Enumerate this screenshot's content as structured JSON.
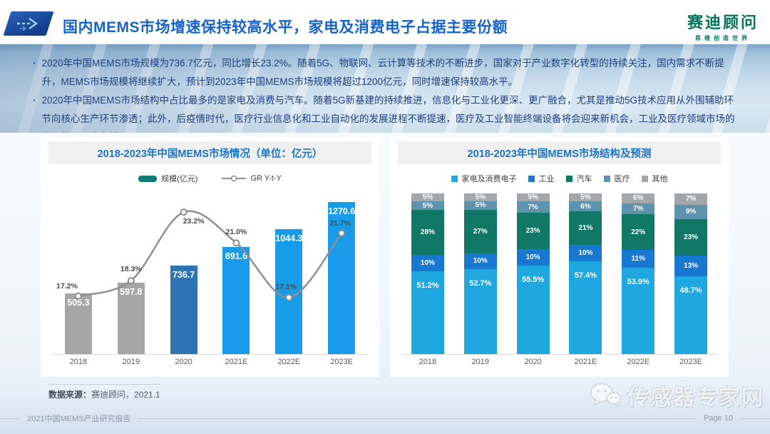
{
  "header": {
    "title": "国内MEMS市场增速保持较高水平，家电及消费电子占据主要份额",
    "arrow_icon": "double-arrow-icon",
    "logo": {
      "name": "赛迪顾问",
      "tagline": "思维创造世界"
    }
  },
  "summary": {
    "bullets": [
      "2020年中国MEMS市场规模为736.7亿元，同比增长23.2%。随着5G、物联网、云计算等技术的不断进步，国家对于产业数字化转型的持续关注，国内需求不断提升，MEMS市场规模将继续扩大，预计到2023年中国MEMS市场规模将超过1200亿元，同时增速保持较高水平。",
      "2020年中国MEMS市场结构中占比最多的是家电及消费与汽车。随着5G新基建的持续推进，信息化与工业化更深、更广融合，尤其是推动5G技术应用从外围辅助环节向核心生产环节渗透；此外，后疫情时代，医疗行业信息化和工业自动化的发展进程不断提速，医疗及工业智能终端设备将会迎来新机会，工业及医疗领域市场的空间将进一步释放。"
    ]
  },
  "chart_data": [
    {
      "type": "bar+line",
      "title": "2018-2023年中国MEMS市场情况（单位：亿元）",
      "categories": [
        "2018",
        "2019",
        "2020",
        "2021E",
        "2022E",
        "2023E"
      ],
      "series": [
        {
          "name": "规模(亿元)",
          "type": "bar",
          "values": [
            505.3,
            597.8,
            736.7,
            891.6,
            1044.3,
            1270.6
          ],
          "legend_color": "#0E7C74"
        },
        {
          "name": "GR Y-t-Y",
          "type": "line",
          "unit": "%",
          "values": [
            17.2,
            18.3,
            23.2,
            21.0,
            17.1,
            21.7
          ],
          "color": "#8F8F8F"
        }
      ],
      "bar_colors": [
        "#A6A6A6",
        "#A6A6A6",
        "#2E75B6",
        "#189BE9",
        "#189BE9",
        "#189BE9"
      ],
      "axis": {
        "bar_max": 1400,
        "growth_min": 13,
        "growth_max": 25
      },
      "legend_position": "top",
      "grid": false
    },
    {
      "type": "stacked-bar-100",
      "title": "2018-2023年中国MEMS市场结构及预测",
      "categories": [
        "2018",
        "2019",
        "2020",
        "2021E",
        "2022E",
        "2023E"
      ],
      "series": [
        {
          "name": "家电及消费电子",
          "color": "#1FA7E0",
          "values": [
            51.2,
            52.7,
            55.5,
            57.4,
            53.9,
            48.7
          ]
        },
        {
          "name": "工业",
          "color": "#1777D1",
          "values": [
            10,
            10,
            10,
            10,
            11,
            13
          ]
        },
        {
          "name": "汽车",
          "color": "#117868",
          "values": [
            28,
            27,
            23,
            21,
            22,
            23
          ]
        },
        {
          "name": "医疗",
          "color": "#5F93AD",
          "values": [
            5,
            5,
            7,
            6,
            7,
            9
          ]
        },
        {
          "name": "其他",
          "color": "#A3A7AA",
          "values": [
            5,
            5,
            5,
            5,
            6,
            7
          ]
        }
      ],
      "legend_position": "top",
      "grid": false
    }
  ],
  "source": {
    "label": "数据来源：",
    "value": "赛迪顾问，2021.1"
  },
  "footer": {
    "report": "2021中国MEMS产业研究报告",
    "page": "Page 10"
  },
  "watermark": {
    "icon": "wechat-icon",
    "text": "传感器专家网"
  },
  "colors": {
    "title_blue": "#1462CE",
    "panel_title_blue": "#1B74C9",
    "logo_green": "#00745C",
    "bullet_navy": "#21407E",
    "bar_gray": "#A6A6A6",
    "bar_blue_2020": "#2E75B6",
    "bar_blue_forecast": "#189BE9",
    "line_gray": "#8F8F8F"
  }
}
